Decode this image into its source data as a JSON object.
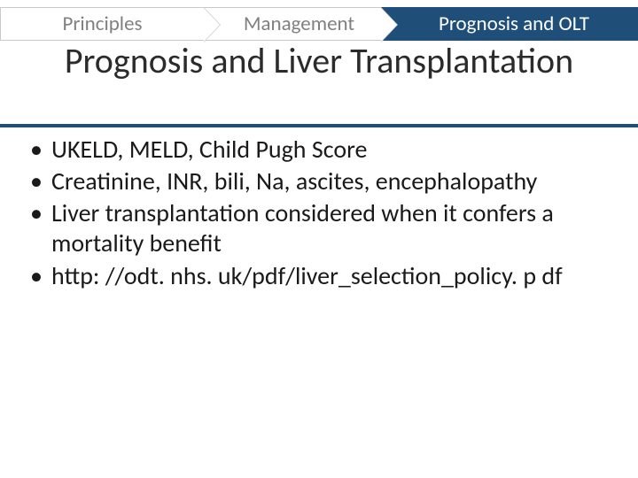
{
  "breadcrumbs": {
    "items": [
      {
        "label": "Principles",
        "active": false
      },
      {
        "label": "Management",
        "active": false
      },
      {
        "label": "Prognosis and OLT",
        "active": true
      }
    ]
  },
  "title": "Prognosis and Liver Transplantation",
  "colors": {
    "accent": "#1f4e79",
    "inactive_text": "#808080",
    "text": "#1a1a1a",
    "background": "#ffffff",
    "crumb_border": "#c9c9c9"
  },
  "typography": {
    "title_fontsize": 40,
    "body_fontsize": 28,
    "crumb_fontsize": 23,
    "family": "Calibri"
  },
  "bullets": [
    "UKELD, MELD, Child Pugh Score",
    "Creatinine, INR, bili, Na, ascites, encephalopathy",
    "Liver transplantation considered when it confers a mortality benefit",
    "http: //odt. nhs. uk/pdf/liver_selection_policy. p df"
  ]
}
